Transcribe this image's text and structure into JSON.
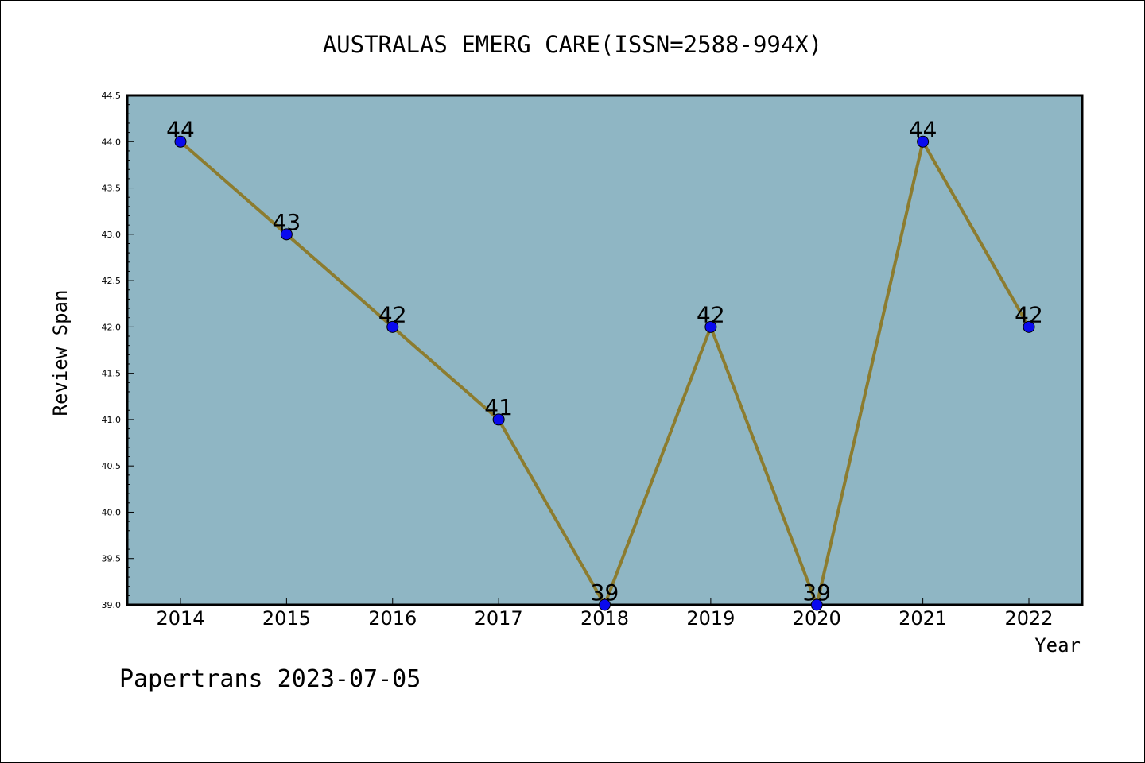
{
  "chart_data": {
    "type": "line",
    "title": "AUSTRALAS EMERG CARE(ISSN=2588-994X)",
    "xlabel": "Year",
    "ylabel": "Review Span",
    "categories": [
      "2014",
      "2015",
      "2016",
      "2017",
      "2018",
      "2019",
      "2020",
      "2021",
      "2022"
    ],
    "values": [
      44,
      43,
      42,
      41,
      39,
      42,
      39,
      44,
      42
    ],
    "data_labels": [
      "44",
      "43",
      "42",
      "41",
      "39",
      "42",
      "39",
      "44",
      "42"
    ],
    "ylim": [
      39.0,
      44.5
    ],
    "yticks": [
      "39.0",
      "39.5",
      "40.0",
      "40.5",
      "41.0",
      "41.5",
      "42.0",
      "42.5",
      "43.0",
      "43.5",
      "44.0",
      "44.5"
    ],
    "grid": false,
    "colors": {
      "plot_background": "#8fb6c4",
      "line": "#8c7c2f",
      "marker": "#0a0aee"
    }
  },
  "footer": "Papertrans 2023-07-05"
}
